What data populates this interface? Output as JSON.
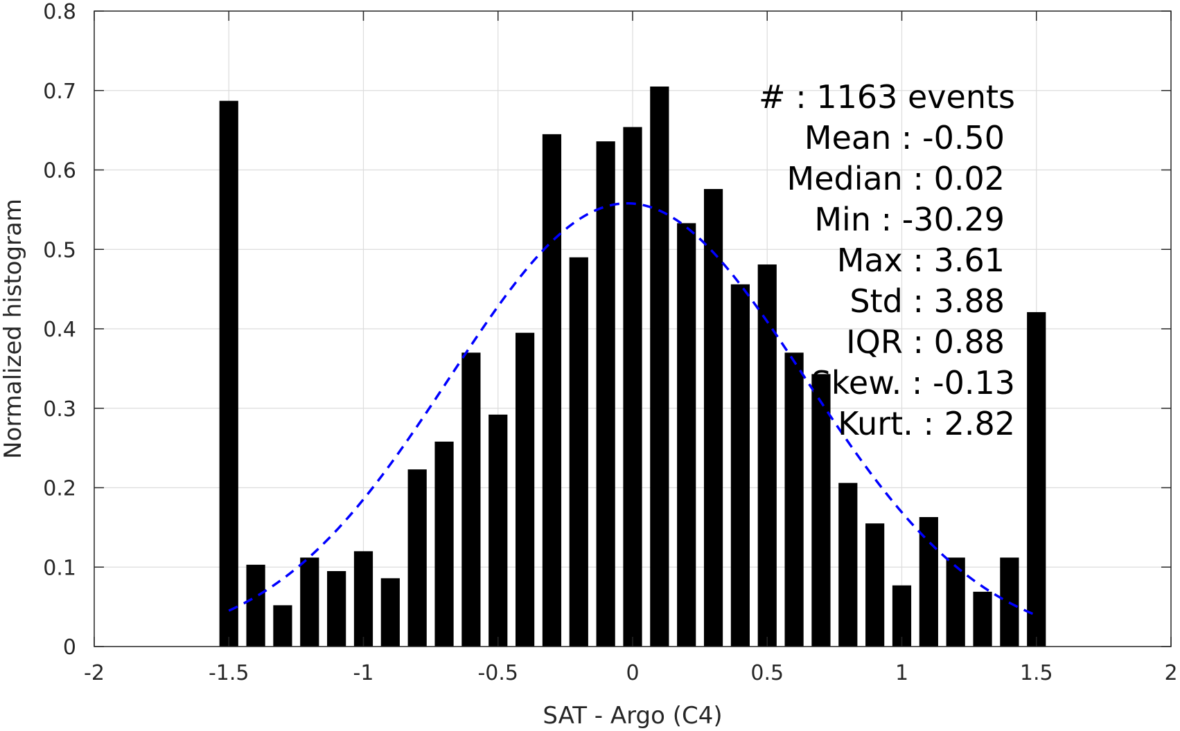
{
  "chart_data": {
    "type": "bar",
    "title": "",
    "xlabel": "SAT - Argo (C4)",
    "ylabel": "Normalized histogram",
    "xlim": [
      -2,
      2
    ],
    "ylim": [
      0,
      0.8
    ],
    "xticks": [
      -2,
      -1.5,
      -1,
      -0.5,
      0,
      0.5,
      1,
      1.5,
      2
    ],
    "xtick_labels": [
      "-2",
      "-1.5",
      "-1",
      "-0.5",
      "0",
      "0.5",
      "1",
      "1.5",
      "2"
    ],
    "yticks": [
      0,
      0.1,
      0.2,
      0.3,
      0.4,
      0.5,
      0.6,
      0.7,
      0.8
    ],
    "ytick_labels": [
      "0",
      "0.1",
      "0.2",
      "0.3",
      "0.4",
      "0.5",
      "0.6",
      "0.7",
      "0.8"
    ],
    "grid": true,
    "bar_width": 0.07,
    "bars": {
      "x": [
        -1.5,
        -1.4,
        -1.3,
        -1.2,
        -1.1,
        -1.0,
        -0.9,
        -0.8,
        -0.7,
        -0.6,
        -0.5,
        -0.4,
        -0.3,
        -0.2,
        -0.1,
        0.0,
        0.1,
        0.2,
        0.3,
        0.4,
        0.5,
        0.6,
        0.7,
        0.8,
        0.9,
        1.0,
        1.1,
        1.2,
        1.3,
        1.4,
        1.5
      ],
      "values": [
        0.687,
        0.103,
        0.052,
        0.112,
        0.095,
        0.12,
        0.086,
        0.223,
        0.258,
        0.37,
        0.292,
        0.395,
        0.645,
        0.49,
        0.636,
        0.654,
        0.705,
        0.533,
        0.576,
        0.456,
        0.481,
        0.37,
        0.343,
        0.206,
        0.155,
        0.077,
        0.163,
        0.112,
        0.069,
        0.112,
        0.421
      ],
      "color": "#000000"
    },
    "fit_curve": {
      "type": "gaussian",
      "style": "dashed",
      "color": "#0000ff",
      "x_range": [
        -1.5,
        1.5
      ],
      "peak": 0.558,
      "center": -0.02,
      "sigma": 0.66,
      "offset": 0.0
    },
    "stats": [
      "#  : 1163 events",
      "Mean : -0.50",
      "Median : 0.02",
      "Min : -30.29",
      "Max : 3.61",
      "Std : 3.88",
      "IQR : 0.88",
      "Skew. : -0.13",
      "Kurt. : 2.82"
    ]
  }
}
